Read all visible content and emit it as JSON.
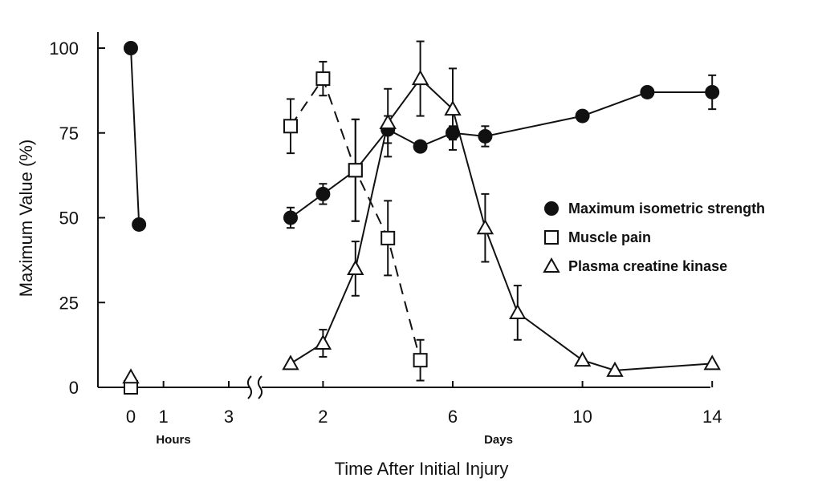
{
  "chart_data": {
    "type": "line",
    "title": "",
    "xlabel": "Time After Initial Injury",
    "ylabel": "Maximum Value (%)",
    "ylim": [
      0,
      100
    ],
    "y_ticks": [
      0,
      25,
      50,
      75,
      100
    ],
    "x_segments": {
      "hours": {
        "label": "Hours",
        "ticks": [
          "0",
          "1",
          "3"
        ],
        "range": [
          0,
          3
        ]
      },
      "days": {
        "label": "Days",
        "ticks": [
          "2",
          "6",
          "10",
          "14"
        ],
        "range": [
          1,
          14
        ]
      }
    },
    "axis_break": "between 3 hours and day 1",
    "series": [
      {
        "name": "Maximum isometric strength",
        "marker": "filled-circle",
        "line": "solid",
        "hours": [
          {
            "x": 0,
            "y": 100
          },
          {
            "x": 0.25,
            "y": 48
          }
        ],
        "days": [
          {
            "x": 1,
            "y": 50,
            "err": 3
          },
          {
            "x": 2,
            "y": 57,
            "err": 3
          },
          {
            "x": 3,
            "y": 64,
            "err": 15,
            "marker": "filled-square"
          },
          {
            "x": 4,
            "y": 76,
            "err": 4
          },
          {
            "x": 5,
            "y": 71
          },
          {
            "x": 6,
            "y": 75,
            "err": 2
          },
          {
            "x": 7,
            "y": 74,
            "err": 3
          },
          {
            "x": 10,
            "y": 80
          },
          {
            "x": 12,
            "y": 87
          },
          {
            "x": 14,
            "y": 87,
            "err": 5
          }
        ]
      },
      {
        "name": "Muscle pain",
        "marker": "open-square",
        "line": "dashed",
        "hours": [
          {
            "x": 0,
            "y": 0
          }
        ],
        "days": [
          {
            "x": 1,
            "y": 77,
            "err": 8
          },
          {
            "x": 2,
            "y": 91,
            "err": 5
          },
          {
            "x": 3,
            "y": 64,
            "err": 15
          },
          {
            "x": 4,
            "y": 44,
            "err": 11
          },
          {
            "x": 5,
            "y": 8,
            "err": 6
          }
        ]
      },
      {
        "name": "Plasma creatine kinase",
        "marker": "open-triangle",
        "line": "solid",
        "hours": [
          {
            "x": 0,
            "y": 3
          }
        ],
        "days": [
          {
            "x": 1,
            "y": 7
          },
          {
            "x": 2,
            "y": 13,
            "err": 4
          },
          {
            "x": 3,
            "y": 35,
            "err": 8
          },
          {
            "x": 4,
            "y": 78,
            "err": 10
          },
          {
            "x": 5,
            "y": 91,
            "err": 11
          },
          {
            "x": 6,
            "y": 82,
            "err": 12
          },
          {
            "x": 7,
            "y": 47,
            "err": 10
          },
          {
            "x": 8,
            "y": 22,
            "err": 8
          },
          {
            "x": 10,
            "y": 8
          },
          {
            "x": 11,
            "y": 5
          },
          {
            "x": 14,
            "y": 7
          }
        ]
      }
    ],
    "legend": {
      "placement": "right-middle",
      "items": [
        {
          "label": "Maximum isometric strength",
          "marker": "filled-circle"
        },
        {
          "label": "Muscle pain",
          "marker": "open-square"
        },
        {
          "label": "Plasma creatine kinase",
          "marker": "open-triangle"
        }
      ]
    }
  }
}
